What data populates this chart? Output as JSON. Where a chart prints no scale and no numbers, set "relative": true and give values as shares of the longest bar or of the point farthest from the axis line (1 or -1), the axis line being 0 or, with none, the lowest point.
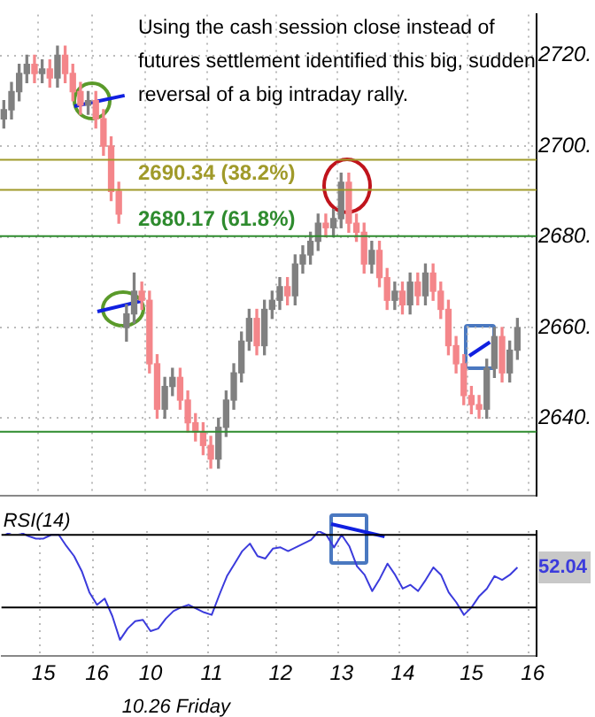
{
  "chart_data": [
    {
      "type": "candlestick",
      "categories": [
        null,
        null,
        null,
        null,
        null,
        "15",
        null,
        null,
        null,
        null,
        null,
        null,
        "16",
        null,
        null,
        null,
        null,
        null,
        null,
        "10",
        null,
        null,
        null,
        null,
        null,
        null,
        null,
        "11",
        null,
        null,
        null,
        null,
        null,
        null,
        null,
        null,
        "12",
        null,
        null,
        null,
        null,
        null,
        null,
        null,
        "13",
        null,
        null,
        null,
        null,
        null,
        null,
        null,
        "14",
        null,
        null,
        null,
        null,
        null,
        null,
        null,
        null,
        "15",
        null,
        null,
        null,
        null,
        null,
        null,
        null,
        "16"
      ],
      "ohlc": [
        [
          2706,
          2710,
          2704,
          2708
        ],
        [
          2708,
          2714,
          2706,
          2712
        ],
        [
          2712,
          2718,
          2710,
          2716
        ],
        [
          2716,
          2720,
          2714,
          2718
        ],
        [
          2718,
          2720,
          2714,
          2716
        ],
        [
          2716,
          2719,
          2714,
          2717
        ],
        [
          2717,
          2719,
          2713,
          2715
        ],
        [
          2715,
          2722,
          2713,
          2720
        ],
        [
          2720,
          2722,
          2714,
          2716
        ],
        [
          2716,
          2718,
          2710,
          2712
        ],
        [
          2712,
          2714,
          2707,
          2709
        ],
        [
          2709,
          2712,
          2707,
          2710
        ],
        [
          2710,
          2712,
          2704,
          2706
        ],
        [
          2706,
          2708,
          2698,
          2700
        ],
        [
          2700,
          2702,
          2688,
          2690
        ],
        [
          2690,
          2692,
          2683,
          2685
        ],
        [
          2660,
          2665,
          2657,
          2663
        ],
        [
          2663,
          2672,
          2661,
          2668
        ],
        [
          2668,
          2670,
          2664,
          2666
        ],
        [
          2666,
          2668,
          2650,
          2652
        ],
        [
          2652,
          2654,
          2640,
          2642
        ],
        [
          2642,
          2649,
          2640,
          2647
        ],
        [
          2647,
          2651,
          2645,
          2649
        ],
        [
          2649,
          2651,
          2642,
          2644
        ],
        [
          2644,
          2646,
          2637,
          2639
        ],
        [
          2639,
          2641,
          2635,
          2637
        ],
        [
          2637,
          2639,
          2632,
          2634
        ],
        [
          2634,
          2636,
          2629,
          2631
        ],
        [
          2631,
          2640,
          2629,
          2638
        ],
        [
          2638,
          2646,
          2636,
          2644
        ],
        [
          2644,
          2652,
          2642,
          2650
        ],
        [
          2650,
          2659,
          2648,
          2657
        ],
        [
          2657,
          2664,
          2655,
          2662
        ],
        [
          2662,
          2664,
          2654,
          2656
        ],
        [
          2656,
          2666,
          2654,
          2664
        ],
        [
          2664,
          2668,
          2662,
          2666
        ],
        [
          2666,
          2671,
          2664,
          2669
        ],
        [
          2669,
          2671,
          2665,
          2667
        ],
        [
          2667,
          2676,
          2665,
          2674
        ],
        [
          2674,
          2678,
          2672,
          2676
        ],
        [
          2676,
          2681,
          2674,
          2679
        ],
        [
          2679,
          2685,
          2677,
          2683
        ],
        [
          2683,
          2685,
          2680,
          2682
        ],
        [
          2682,
          2686,
          2680,
          2684
        ],
        [
          2684,
          2694,
          2682,
          2692
        ],
        [
          2692,
          2694,
          2681,
          2683
        ],
        [
          2683,
          2685,
          2679,
          2681
        ],
        [
          2681,
          2683,
          2672,
          2674
        ],
        [
          2674,
          2679,
          2672,
          2677
        ],
        [
          2677,
          2679,
          2669,
          2671
        ],
        [
          2671,
          2673,
          2664,
          2666
        ],
        [
          2666,
          2670,
          2664,
          2668
        ],
        [
          2668,
          2670,
          2663,
          2665
        ],
        [
          2665,
          2672,
          2663,
          2670
        ],
        [
          2670,
          2672,
          2665,
          2667
        ],
        [
          2667,
          2674,
          2665,
          2672
        ],
        [
          2672,
          2674,
          2666,
          2668
        ],
        [
          2668,
          2670,
          2662,
          2664
        ],
        [
          2664,
          2666,
          2654,
          2656
        ],
        [
          2656,
          2658,
          2650,
          2652
        ],
        [
          2652,
          2654,
          2643,
          2645
        ],
        [
          2645,
          2647,
          2641,
          2643
        ],
        [
          2643,
          2645,
          2640,
          2642
        ],
        [
          2642,
          2653,
          2640,
          2651
        ],
        [
          2651,
          2660,
          2649,
          2658
        ],
        [
          2658,
          2660,
          2648,
          2650
        ],
        [
          2650,
          2657,
          2648,
          2655
        ],
        [
          2655,
          2662,
          2653,
          2660
        ],
        null,
        null
      ],
      "colors": [
        "#808080",
        "#808080",
        "#808080",
        "#808080",
        "#f4868a",
        "#808080",
        "#f4868a",
        "#808080",
        "#f4868a",
        "#f4868a",
        "#f4868a",
        "#808080",
        "#f4868a",
        "#f4868a",
        "#f4868a",
        "#f4868a",
        "#808080",
        "#808080",
        "#f4868a",
        "#f4868a",
        "#f4868a",
        "#808080",
        "#808080",
        "#f4868a",
        "#f4868a",
        "#f4868a",
        "#f4868a",
        "#f4868a",
        "#808080",
        "#808080",
        "#808080",
        "#808080",
        "#808080",
        "#f4868a",
        "#808080",
        "#808080",
        "#808080",
        "#f4868a",
        "#808080",
        "#808080",
        "#808080",
        "#808080",
        "#f4868a",
        "#808080",
        "#808080",
        "#f4868a",
        "#f4868a",
        "#f4868a",
        "#808080",
        "#f4868a",
        "#f4868a",
        "#808080",
        "#f4868a",
        "#808080",
        "#f4868a",
        "#808080",
        "#f4868a",
        "#f4868a",
        "#f4868a",
        "#f4868a",
        "#f4868a",
        "#f4868a",
        "#f4868a",
        "#808080",
        "#808080",
        "#f4868a",
        "#808080",
        "#808080",
        "#808080",
        "#808080"
      ],
      "ylim": [
        2623,
        2729
      ],
      "yticks": [
        {
          "value": 2640,
          "label": "2640."
        },
        {
          "value": 2660,
          "label": "2660."
        },
        {
          "value": 2680,
          "label": "2680."
        },
        {
          "value": 2700,
          "label": "2700."
        },
        {
          "value": 2720,
          "label": "2720."
        }
      ],
      "tick_labels": "y",
      "grid": true,
      "ref_lines": [
        {
          "axis": "y",
          "value": 2697,
          "color": "#a09a2a"
        },
        {
          "axis": "y",
          "value": 2690.34,
          "label": "2690.34 (38.2%)",
          "color": "#a09a2a"
        },
        {
          "axis": "y",
          "value": 2680.17,
          "label": "2680.17 (61.8%)",
          "color": "#2e8b2e"
        },
        {
          "axis": "y",
          "value": 2637,
          "color": "#2e8b2e"
        }
      ],
      "annotations": [
        "Using the cash session close instead of futures settlement identified this big, sudden reversal of a big intraday rally."
      ]
    },
    {
      "type": "line",
      "title": "RSI(14)",
      "categories": [
        null,
        null,
        null,
        null,
        null,
        "15",
        null,
        null,
        null,
        null,
        null,
        null,
        "16",
        null,
        null,
        null,
        null,
        null,
        null,
        "10",
        null,
        null,
        null,
        null,
        null,
        null,
        null,
        "11",
        null,
        null,
        null,
        null,
        null,
        null,
        null,
        null,
        "12",
        null,
        null,
        null,
        null,
        null,
        null,
        null,
        "13",
        null,
        null,
        null,
        null,
        null,
        null,
        null,
        "14",
        null,
        null,
        null,
        null,
        null,
        null,
        null,
        null,
        "15",
        null,
        null,
        null,
        null,
        null,
        null,
        null,
        "16"
      ],
      "series": [
        {
          "color": "#3b3bdc",
          "values": [
            0.97,
            1,
            0.99,
            0.96,
            0.94,
            0.94,
            0.97,
            0.97,
            0.88,
            0.8,
            0.68,
            0.51,
            0.41,
            0.46,
            0.32,
            0.13,
            0.22,
            0.28,
            0.29,
            0.2,
            0.22,
            0.3,
            0.36,
            0.39,
            0.41,
            0.38,
            0.35,
            0.33,
            0.49,
            0.64,
            0.74,
            0.84,
            0.9,
            0.8,
            0.78,
            0.86,
            0.87,
            0.84,
            0.87,
            0.9,
            0.93,
            1,
            0.97,
            0.87,
            0.97,
            0.88,
            0.72,
            0.65,
            0.52,
            0.62,
            0.74,
            0.65,
            0.54,
            0.57,
            0.52,
            0.61,
            0.71,
            0.65,
            0.51,
            0.43,
            0.33,
            0.39,
            0.48,
            0.54,
            0.64,
            0.61,
            0.65,
            0.71,
            null,
            null
          ]
        }
      ],
      "relative": true,
      "tick_labels": "x",
      "grid": "x",
      "ref_lines": [
        {
          "axis": "y",
          "value": 0.97,
          "color": "#000000"
        },
        {
          "axis": "y",
          "value": 0.39,
          "color": "#000000"
        }
      ],
      "annotations": [
        "10.26 Friday",
        {
          "text": "52.04",
          "y": 0.71
        }
      ]
    }
  ]
}
